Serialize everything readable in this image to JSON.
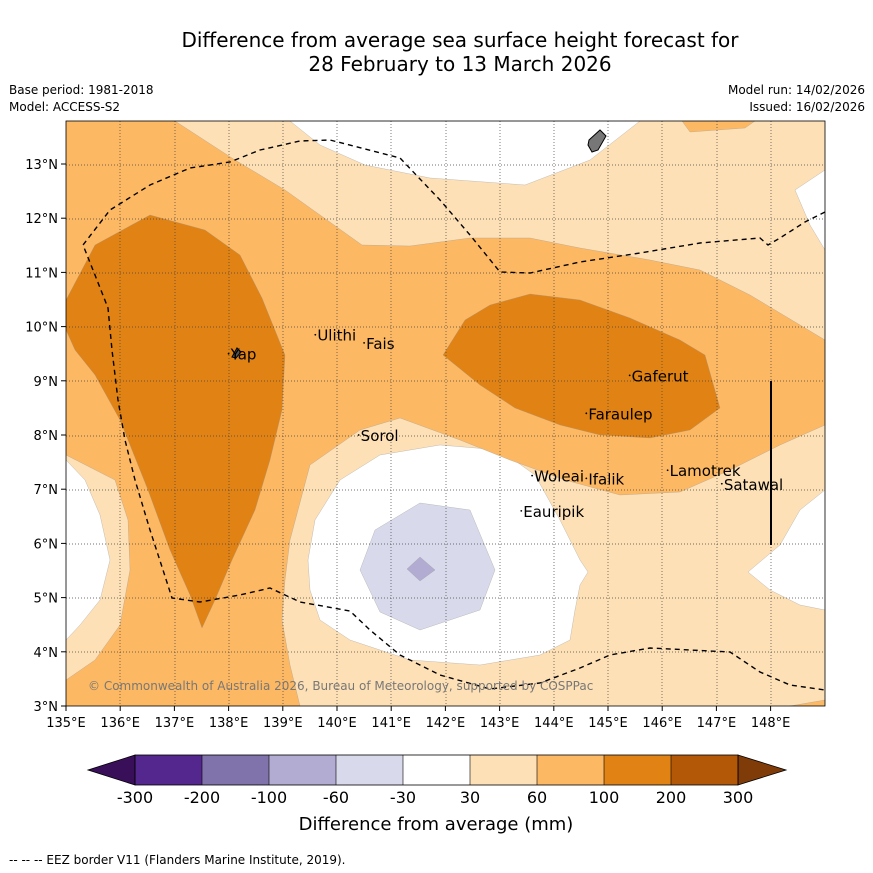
{
  "header": {
    "title_line1": "Difference from average sea surface height forecast for",
    "title_line2": "28 February to 13 March 2026",
    "base_period": "Base period: 1981-2018",
    "model": "Model: ACCESS-S2",
    "model_run": "Model run: 14/02/2026",
    "issued": "Issued: 16/02/2026"
  },
  "map": {
    "lon_range": [
      135,
      149
    ],
    "lat_range": [
      3,
      13.8
    ],
    "lon_ticks": [
      "135°E",
      "136°E",
      "137°E",
      "138°E",
      "139°E",
      "140°E",
      "141°E",
      "142°E",
      "143°E",
      "144°E",
      "145°E",
      "146°E",
      "147°E",
      "148°E"
    ],
    "lat_ticks": [
      "3°N",
      "4°N",
      "5°N",
      "6°N",
      "7°N",
      "8°N",
      "9°N",
      "10°N",
      "11°N",
      "12°N",
      "13°N"
    ],
    "copyright": "© Commonwealth of Australia 2026, Bureau of Meteorology, supported by COSPPac",
    "places": [
      {
        "name": "Yap",
        "lon": 138.0,
        "lat": 9.5
      },
      {
        "name": "Ulithi",
        "lon": 139.6,
        "lat": 9.85
      },
      {
        "name": "Fais",
        "lon": 140.5,
        "lat": 9.7
      },
      {
        "name": "Sorol",
        "lon": 140.4,
        "lat": 8.0
      },
      {
        "name": "Gaferut",
        "lon": 145.4,
        "lat": 9.1
      },
      {
        "name": "Faraulep",
        "lon": 144.6,
        "lat": 8.4
      },
      {
        "name": "Woleai",
        "lon": 143.6,
        "lat": 7.25
      },
      {
        "name": "Ifalik",
        "lon": 144.6,
        "lat": 7.2
      },
      {
        "name": "Lamotrek",
        "lon": 146.1,
        "lat": 7.35
      },
      {
        "name": "Satawal",
        "lon": 147.1,
        "lat": 7.1
      },
      {
        "name": "Eauripik",
        "lon": 143.4,
        "lat": 6.6
      }
    ]
  },
  "legend": {
    "tick_labels": [
      "-300",
      "-200",
      "-100",
      "-60",
      "-30",
      "30",
      "60",
      "100",
      "200",
      "300"
    ],
    "colors": [
      "#3a0f5a",
      "#54278f",
      "#8073ac",
      "#b2abd2",
      "#d8daeb",
      "#ffffff",
      "#fee0b6",
      "#fdb863",
      "#e08214",
      "#b35806",
      "#7f3b08"
    ],
    "caption": "Difference from average (mm)"
  },
  "footnote": "--  --  -- EEZ border V11 (Flanders Marine Institute, 2019)."
}
